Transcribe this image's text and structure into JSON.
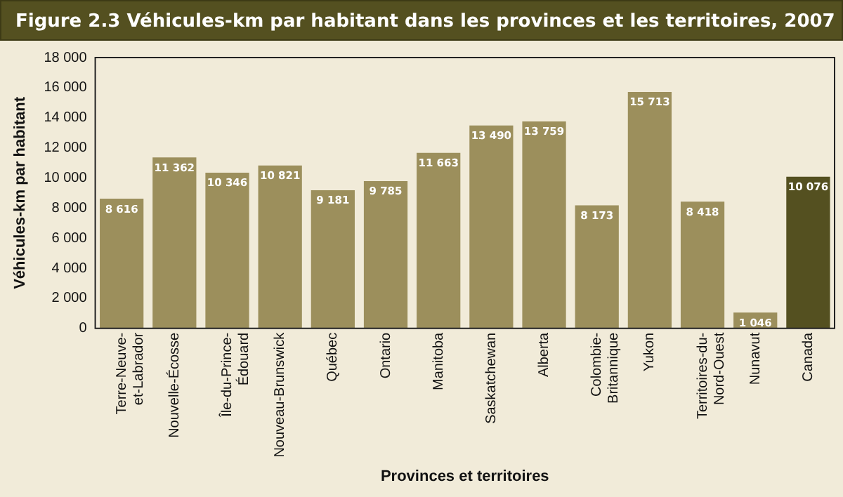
{
  "chart_data": {
    "type": "bar",
    "title": "Figure 2.3  Véhicules-km par habitant dans les provinces et les territoires, 2007",
    "xlabel": "Provinces et territoires",
    "ylabel": "Véhicules-km par habitant",
    "categories": [
      "Terre-Neuve-\net-Labrador",
      "Nouvelle-Écosse",
      "Île-du-Prince-\nÉdouard",
      "Nouveau-Brunswick",
      "Québec",
      "Ontario",
      "Manitoba",
      "Saskatchewan",
      "Alberta",
      "Colombie-\nBritannique",
      "Yukon",
      "Territoires-du-\nNord-Ouest",
      "Nunavut",
      "Canada"
    ],
    "values": [
      8616,
      11362,
      10346,
      10821,
      9181,
      9785,
      11663,
      13490,
      13759,
      8173,
      15713,
      8418,
      1046,
      10076
    ],
    "value_labels": [
      "8 616",
      "11 362",
      "10 346",
      "10 821",
      "9 181",
      "9 785",
      "11 663",
      "13 490",
      "13 759",
      "8 173",
      "15 713",
      "8 418",
      "1 046",
      "10 076"
    ],
    "colors": [
      "#9c8f5c",
      "#9c8f5c",
      "#9c8f5c",
      "#9c8f5c",
      "#9c8f5c",
      "#9c8f5c",
      "#9c8f5c",
      "#9c8f5c",
      "#9c8f5c",
      "#9c8f5c",
      "#9c8f5c",
      "#9c8f5c",
      "#9c8f5c",
      "#545020"
    ],
    "ylim": [
      0,
      18000
    ],
    "yticks": [
      {
        "value": 0,
        "label": "0"
      },
      {
        "value": 2000,
        "label": "2 000"
      },
      {
        "value": 4000,
        "label": "4 000"
      },
      {
        "value": 6000,
        "label": "6 000"
      },
      {
        "value": 8000,
        "label": "8 000"
      },
      {
        "value": 10000,
        "label": "10 000"
      },
      {
        "value": 12000,
        "label": "12 000"
      },
      {
        "value": 14000,
        "label": "14 000"
      },
      {
        "value": 16000,
        "label": "16 000"
      },
      {
        "value": 18000,
        "label": "18 000"
      }
    ],
    "grid": false,
    "legend": false
  }
}
